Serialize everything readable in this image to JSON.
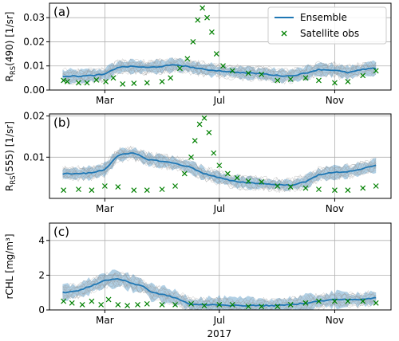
{
  "chart_data": [
    {
      "type": "line",
      "panel_label": "(a)",
      "ylabel": {
        "prefix": "R",
        "sub": "RS",
        "suffix": "(490) [1/sr]"
      },
      "ylim": [
        0,
        0.036
      ],
      "yticks": [
        0.0,
        0.01,
        0.02,
        0.03
      ],
      "ytick_labels": [
        "0.00",
        "0.01",
        "0.02",
        "0.03"
      ],
      "xlim": [
        "2017-01-01",
        "2017-12-31"
      ],
      "xticks": [
        "2017-03-01",
        "2017-07-01",
        "2017-11-01"
      ],
      "xtick_labels": [
        "Mar",
        "Jul",
        "Nov"
      ],
      "grid": true,
      "legend": {
        "placement": "top-right",
        "entries": [
          "Ensemble",
          "Satellite obs"
        ]
      },
      "series": [
        {
          "name": "Ensemble",
          "style": "line",
          "color": "#1f77b4",
          "x": [
            "2017-01-15",
            "2017-02-01",
            "2017-02-15",
            "2017-03-01",
            "2017-03-15",
            "2017-04-01",
            "2017-04-15",
            "2017-05-01",
            "2017-05-15",
            "2017-06-01",
            "2017-06-15",
            "2017-07-01",
            "2017-07-15",
            "2017-08-01",
            "2017-08-15",
            "2017-09-01",
            "2017-09-15",
            "2017-10-01",
            "2017-10-15",
            "2017-11-01",
            "2017-11-15",
            "2017-12-01",
            "2017-12-15"
          ],
          "y": [
            0.0058,
            0.0057,
            0.006,
            0.0065,
            0.0095,
            0.0098,
            0.0093,
            0.0098,
            0.0105,
            0.0095,
            0.0085,
            0.008,
            0.0075,
            0.007,
            0.0068,
            0.006,
            0.0058,
            0.007,
            0.0085,
            0.0082,
            0.0072,
            0.0085,
            0.009
          ]
        },
        {
          "name": "Satellite obs",
          "style": "marker-x",
          "color": "#008000",
          "x": [
            "2017-01-16",
            "2017-01-20",
            "2017-02-01",
            "2017-02-10",
            "2017-02-20",
            "2017-03-02",
            "2017-03-10",
            "2017-03-20",
            "2017-04-01",
            "2017-04-15",
            "2017-05-01",
            "2017-05-10",
            "2017-05-20",
            "2017-05-28",
            "2017-06-03",
            "2017-06-08",
            "2017-06-13",
            "2017-06-18",
            "2017-06-23",
            "2017-06-28",
            "2017-07-05",
            "2017-07-15",
            "2017-08-01",
            "2017-08-15",
            "2017-09-01",
            "2017-09-15",
            "2017-10-01",
            "2017-10-15",
            "2017-11-01",
            "2017-11-15",
            "2017-12-01",
            "2017-12-15"
          ],
          "y": [
            0.004,
            0.0035,
            0.003,
            0.003,
            0.0042,
            0.0035,
            0.005,
            0.0025,
            0.0028,
            0.003,
            0.0035,
            0.005,
            0.009,
            0.013,
            0.02,
            0.029,
            0.034,
            0.03,
            0.024,
            0.015,
            0.01,
            0.008,
            0.007,
            0.0065,
            0.004,
            0.0045,
            0.005,
            0.004,
            0.003,
            0.0035,
            0.006,
            0.008
          ]
        }
      ]
    },
    {
      "type": "line",
      "panel_label": "(b)",
      "ylabel": {
        "prefix": "R",
        "sub": "RS",
        "suffix": "(555) [1/sr]"
      },
      "ylim": [
        0,
        0.0205
      ],
      "yticks": [
        0.01,
        0.02
      ],
      "ytick_labels": [
        "0.01",
        "0.02"
      ],
      "xlim": [
        "2017-01-01",
        "2017-12-31"
      ],
      "xticks": [
        "2017-03-01",
        "2017-07-01",
        "2017-11-01"
      ],
      "xtick_labels": [
        "Mar",
        "Jul",
        "Nov"
      ],
      "grid": true,
      "series": [
        {
          "name": "Ensemble",
          "style": "line",
          "color": "#1f77b4",
          "x": [
            "2017-01-15",
            "2017-02-01",
            "2017-02-15",
            "2017-03-01",
            "2017-03-15",
            "2017-04-01",
            "2017-04-15",
            "2017-05-01",
            "2017-05-15",
            "2017-06-01",
            "2017-06-15",
            "2017-07-01",
            "2017-07-15",
            "2017-08-01",
            "2017-08-15",
            "2017-09-01",
            "2017-09-15",
            "2017-10-01",
            "2017-10-15",
            "2017-11-01",
            "2017-11-15",
            "2017-12-01",
            "2017-12-15"
          ],
          "y": [
            0.006,
            0.006,
            0.0062,
            0.007,
            0.0105,
            0.011,
            0.0095,
            0.009,
            0.0085,
            0.0075,
            0.006,
            0.005,
            0.0042,
            0.0038,
            0.0036,
            0.0033,
            0.0032,
            0.004,
            0.0058,
            0.0063,
            0.0065,
            0.0072,
            0.008
          ]
        },
        {
          "name": "Satellite obs",
          "style": "marker-x",
          "color": "#008000",
          "x": [
            "2017-01-16",
            "2017-02-01",
            "2017-02-15",
            "2017-03-01",
            "2017-03-15",
            "2017-04-01",
            "2017-04-15",
            "2017-05-01",
            "2017-05-15",
            "2017-05-25",
            "2017-06-01",
            "2017-06-05",
            "2017-06-10",
            "2017-06-15",
            "2017-06-20",
            "2017-06-25",
            "2017-07-01",
            "2017-07-10",
            "2017-07-20",
            "2017-08-01",
            "2017-08-15",
            "2017-09-01",
            "2017-09-15",
            "2017-10-01",
            "2017-10-15",
            "2017-11-01",
            "2017-11-15",
            "2017-12-01",
            "2017-12-15"
          ],
          "y": [
            0.002,
            0.0022,
            0.002,
            0.003,
            0.0028,
            0.002,
            0.002,
            0.0022,
            0.003,
            0.006,
            0.01,
            0.014,
            0.018,
            0.0195,
            0.016,
            0.011,
            0.008,
            0.006,
            0.005,
            0.0042,
            0.004,
            0.003,
            0.0028,
            0.0025,
            0.0022,
            0.002,
            0.002,
            0.0025,
            0.003
          ]
        }
      ]
    },
    {
      "type": "line",
      "panel_label": "(c)",
      "ylabel": {
        "prefix": "rCHL [mg/m³]",
        "sub": "",
        "suffix": ""
      },
      "ylim": [
        0,
        5
      ],
      "yticks": [
        0,
        2,
        4
      ],
      "ytick_labels": [
        "0",
        "2",
        "4"
      ],
      "xlim": [
        "2017-01-01",
        "2017-12-31"
      ],
      "xticks": [
        "2017-03-01",
        "2017-07-01",
        "2017-11-01"
      ],
      "xtick_labels": [
        "Mar",
        "Jul",
        "Nov"
      ],
      "xlabel": "2017",
      "grid": true,
      "series": [
        {
          "name": "Ensemble",
          "style": "line",
          "color": "#1f77b4",
          "x": [
            "2017-01-15",
            "2017-02-01",
            "2017-02-15",
            "2017-03-01",
            "2017-03-15",
            "2017-04-01",
            "2017-04-10",
            "2017-04-20",
            "2017-05-01",
            "2017-05-15",
            "2017-06-01",
            "2017-06-15",
            "2017-07-01",
            "2017-07-15",
            "2017-08-01",
            "2017-08-15",
            "2017-09-01",
            "2017-09-15",
            "2017-10-01",
            "2017-10-15",
            "2017-11-01",
            "2017-11-15",
            "2017-12-01",
            "2017-12-15"
          ],
          "y": [
            1.0,
            1.1,
            1.4,
            1.7,
            1.8,
            1.5,
            1.4,
            1.0,
            0.9,
            0.7,
            0.3,
            0.3,
            0.3,
            0.25,
            0.25,
            0.25,
            0.25,
            0.3,
            0.4,
            0.5,
            0.6,
            0.6,
            0.6,
            0.7
          ]
        },
        {
          "name": "Satellite obs",
          "style": "marker-x",
          "color": "#008000",
          "x": [
            "2017-01-16",
            "2017-01-25",
            "2017-02-05",
            "2017-02-15",
            "2017-02-25",
            "2017-03-05",
            "2017-03-15",
            "2017-03-25",
            "2017-04-05",
            "2017-04-15",
            "2017-05-01",
            "2017-05-15",
            "2017-06-01",
            "2017-06-15",
            "2017-07-01",
            "2017-07-15",
            "2017-08-01",
            "2017-08-15",
            "2017-09-01",
            "2017-09-15",
            "2017-10-01",
            "2017-10-15",
            "2017-11-01",
            "2017-11-15",
            "2017-12-01",
            "2017-12-15"
          ],
          "y": [
            0.5,
            0.4,
            0.3,
            0.5,
            0.3,
            0.6,
            0.3,
            0.25,
            0.3,
            0.35,
            0.3,
            0.3,
            0.35,
            0.25,
            0.3,
            0.3,
            0.2,
            0.2,
            0.2,
            0.3,
            0.4,
            0.5,
            0.5,
            0.5,
            0.5,
            0.4
          ]
        }
      ]
    }
  ]
}
